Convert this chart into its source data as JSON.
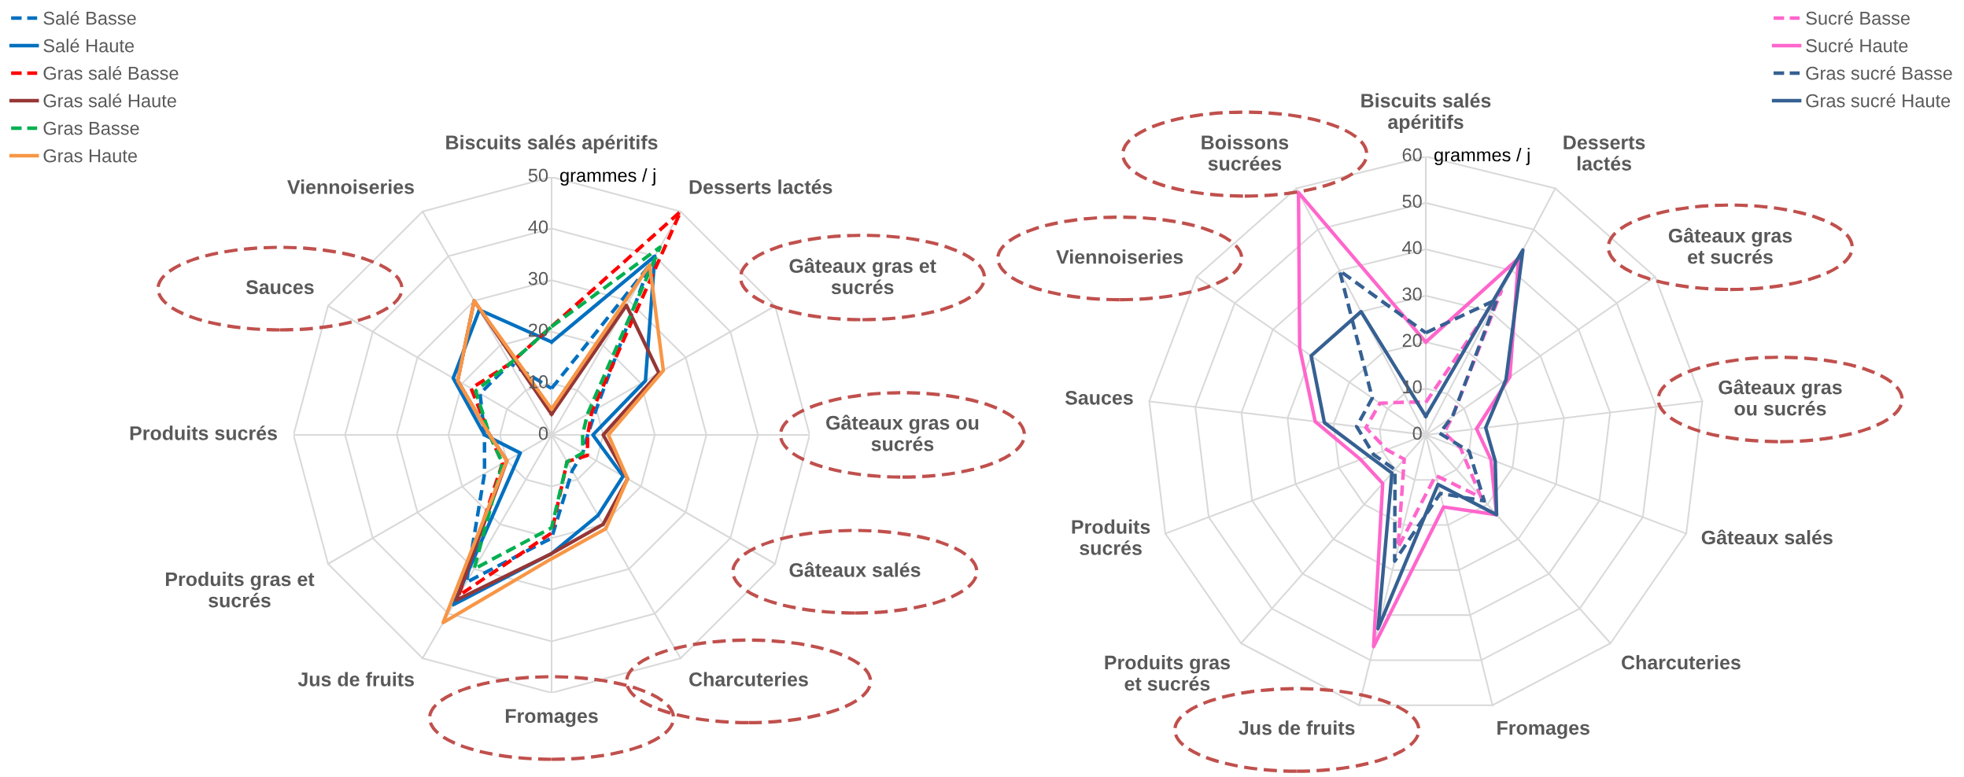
{
  "chart_data": [
    {
      "type": "radar",
      "ylabel": "grammes / j",
      "ylim": [
        0,
        50
      ],
      "yticks": [
        0,
        10,
        20,
        30,
        40,
        50
      ],
      "grid": true,
      "legend": "top left",
      "categories": [
        "Biscuits salés apéritifs",
        "Desserts lactés",
        "Gâteaux gras et sucrés",
        "Gâteaux gras ou sucrés",
        "Gâteaux salés",
        "Charcuteries",
        "Fromages",
        "Jus de fruits",
        "Produits gras et sucrés",
        "Produits sucrés",
        "Sauces",
        "Viennoiseries"
      ],
      "series": [
        {
          "name": "Salé Basse",
          "color": "#0070c0",
          "line_style": "dashed",
          "values": [
            9,
            38,
            10,
            7,
            7,
            8,
            20,
            33,
            15,
            13,
            16,
            16
          ]
        },
        {
          "name": "Salé Haute",
          "color": "#0070c0",
          "line_style": "solid",
          "values": [
            18,
            40,
            21,
            8,
            16,
            18,
            23,
            38,
            7,
            13,
            22,
            28
          ]
        },
        {
          "name": "Gras salé Basse",
          "color": "#ff0000",
          "line_style": "dashed",
          "values": [
            21,
            50,
            9,
            7,
            8,
            6,
            19,
            36,
            11,
            12,
            18,
            16
          ]
        },
        {
          "name": "Gras salé Haute",
          "color": "#953735",
          "line_style": "solid",
          "values": [
            4,
            29,
            24,
            10,
            17,
            20,
            23,
            37,
            10,
            12,
            21,
            30
          ]
        },
        {
          "name": "Gras Basse",
          "color": "#00b050",
          "line_style": "dashed",
          "values": [
            21,
            42,
            8,
            6,
            7,
            6,
            18,
            30,
            11,
            12,
            17,
            16
          ]
        },
        {
          "name": "Gras Haute",
          "color": "#f79646",
          "line_style": "solid",
          "values": [
            5,
            38,
            25,
            11,
            17,
            21,
            24,
            42,
            10,
            12,
            21,
            30
          ]
        }
      ]
    },
    {
      "type": "radar",
      "ylabel": "grammes / j",
      "ylim": [
        0,
        60
      ],
      "yticks": [
        0,
        10,
        20,
        30,
        40,
        50,
        60
      ],
      "grid": true,
      "legend": "top right",
      "categories": [
        "Biscuits salés apéritifs",
        "Desserts lactés",
        "Gâteaux gras et sucrés",
        "Gâteaux gras ou sucrés",
        "Gâteaux salés",
        "Charcuteries",
        "Fromages",
        "Jus de fruits",
        "Produits gras et sucrés",
        "Produits sucrés",
        "Sauces",
        "Viennoiseries",
        "Boissons sucrées"
      ],
      "series": [
        {
          "name": "Sucré Basse",
          "color": "#ff66cc",
          "line_style": "dashed",
          "values": [
            7,
            35,
            7,
            4,
            8,
            18,
            9,
            25,
            7,
            9,
            13,
            12,
            8
          ]
        },
        {
          "name": "Sucré Haute",
          "color": "#ff66cc",
          "line_style": "solid",
          "values": [
            20,
            43,
            22,
            11,
            15,
            23,
            16,
            47,
            14,
            15,
            24,
            33,
            59
          ]
        },
        {
          "name": "Gras sucré Basse",
          "color": "#366092",
          "line_style": "dashed",
          "values": [
            22,
            33,
            7,
            3,
            10,
            19,
            13,
            28,
            10,
            12,
            15,
            14,
            40
          ]
        },
        {
          "name": "Gras sucré Haute",
          "color": "#366092",
          "line_style": "solid",
          "values": [
            4,
            45,
            21,
            13,
            16,
            23,
            11,
            43,
            11,
            13,
            22,
            30,
            30
          ]
        }
      ]
    }
  ]
}
